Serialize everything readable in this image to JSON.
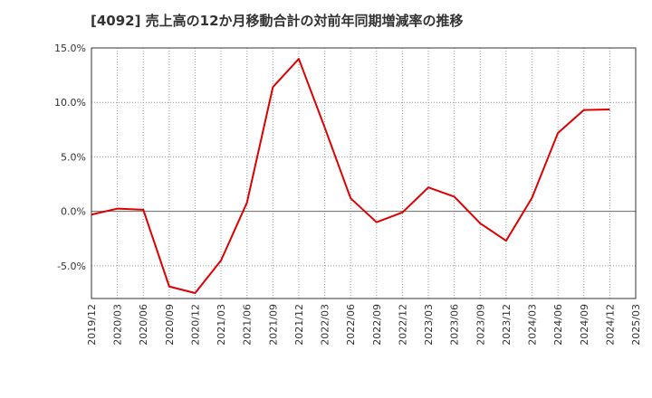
{
  "chart_data": {
    "type": "line",
    "title": "[4092]  売上高の12か月移動合計の対前年同期増減率の推移",
    "xlabel": "",
    "ylabel": "",
    "x": [
      "2019/12",
      "2020/03",
      "2020/06",
      "2020/09",
      "2020/12",
      "2021/03",
      "2021/06",
      "2021/09",
      "2021/12",
      "2022/03",
      "2022/06",
      "2022/09",
      "2022/12",
      "2023/03",
      "2023/06",
      "2023/09",
      "2023/12",
      "2024/03",
      "2024/06",
      "2024/09",
      "2024/12",
      "2025/03"
    ],
    "series": [
      {
        "name": "",
        "color": "#dd0000",
        "values": [
          -0.3,
          0.25,
          0.15,
          -6.9,
          -7.5,
          -4.5,
          0.8,
          11.4,
          14.0,
          7.7,
          1.2,
          -1.0,
          -0.1,
          2.2,
          1.35,
          -1.1,
          -2.7,
          1.25,
          7.2,
          9.3,
          9.35,
          null
        ]
      }
    ],
    "yticks": [
      -5.0,
      0.0,
      5.0,
      10.0,
      15.0
    ],
    "ytick_labels": [
      "-5.0%",
      "0.0%",
      "5.0%",
      "10.0%",
      "15.0%"
    ],
    "ylim": [
      -8.0,
      15.0
    ],
    "grid": true,
    "legend": "none"
  }
}
